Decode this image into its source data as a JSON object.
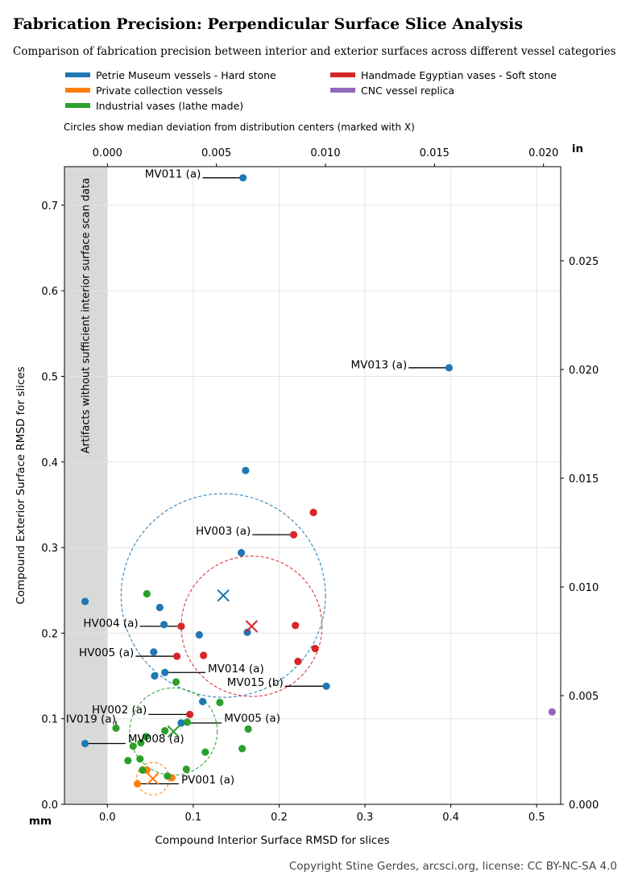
{
  "title": "Fabrication Precision: Perpendicular Surface Slice Analysis",
  "subtitle": "Comparison of fabrication precision between interior and exterior surfaces across different vessel categories",
  "note": "Circles show median deviation from distribution centers (marked with X)",
  "copyright": "Copyright Stine Gerdes, arcsci.org, license: CC BY-NC-SA 4.0",
  "chart_data": {
    "type": "scatter",
    "xlabel": "Compound Interior Surface RMSD for slices",
    "ylabel": "Compound Exterior Surface RMSD for slices",
    "x_unit": "mm",
    "top_unit": "in",
    "xlim": [
      -0.05,
      0.528
    ],
    "ylim": [
      0,
      0.745
    ],
    "xticks": [
      0.0,
      0.1,
      0.2,
      0.3,
      0.4,
      0.5
    ],
    "yticks": [
      0.0,
      0.1,
      0.2,
      0.3,
      0.4,
      0.5,
      0.6,
      0.7
    ],
    "top_ticks_in": [
      "0.000",
      "0.005",
      "0.010",
      "0.015",
      "0.020"
    ],
    "right_ticks_in": [
      "0.000",
      "0.005",
      "0.010",
      "0.015",
      "0.020",
      "0.025"
    ],
    "grid": true,
    "legend_position": "top",
    "shaded_region": {
      "x": [
        -0.05,
        0
      ],
      "label": "Artifacts without sufficient interior surface scan data",
      "color": "#d9d9d9"
    },
    "series": [
      {
        "name": "Petrie Museum vessels - Hard stone",
        "color": "#1f77b4",
        "points": [
          [
            0.158,
            0.732
          ],
          [
            0.398,
            0.51
          ],
          [
            0.161,
            0.39
          ],
          [
            0.156,
            0.294
          ],
          [
            -0.026,
            0.237
          ],
          [
            0.061,
            0.23
          ],
          [
            0.066,
            0.21
          ],
          [
            0.107,
            0.198
          ],
          [
            0.163,
            0.201
          ],
          [
            0.054,
            0.178
          ],
          [
            0.067,
            0.154
          ],
          [
            0.055,
            0.15
          ],
          [
            0.255,
            0.138
          ],
          [
            0.111,
            0.12
          ],
          [
            0.086,
            0.095
          ],
          [
            -0.026,
            0.071
          ]
        ],
        "center": [
          0.135,
          0.244
        ],
        "radius": 0.119
      },
      {
        "name": "Private collection vessels",
        "color": "#ff7f0e",
        "points": [
          [
            0.046,
            0.04
          ],
          [
            0.075,
            0.031
          ],
          [
            0.035,
            0.024
          ]
        ],
        "center": [
          0.053,
          0.03
        ],
        "radius": 0.019
      },
      {
        "name": "Industrial vases (lathe made)",
        "color": "#2ca02c",
        "points": [
          [
            0.046,
            0.246
          ],
          [
            0.08,
            0.143
          ],
          [
            0.131,
            0.119
          ],
          [
            0.164,
            0.088
          ],
          [
            0.01,
            0.089
          ],
          [
            0.093,
            0.096
          ],
          [
            0.067,
            0.086
          ],
          [
            0.045,
            0.079
          ],
          [
            0.039,
            0.072
          ],
          [
            0.03,
            0.068
          ],
          [
            0.024,
            0.051
          ],
          [
            0.038,
            0.053
          ],
          [
            0.114,
            0.061
          ],
          [
            0.157,
            0.065
          ],
          [
            0.041,
            0.04
          ],
          [
            0.092,
            0.041
          ],
          [
            0.07,
            0.033
          ]
        ],
        "center": [
          0.077,
          0.085
        ],
        "radius": 0.051
      },
      {
        "name": "Handmade Egyptian vases - Soft stone",
        "color": "#d62728",
        "points": [
          [
            0.24,
            0.341
          ],
          [
            0.217,
            0.315
          ],
          [
            0.086,
            0.208
          ],
          [
            0.219,
            0.209
          ],
          [
            0.112,
            0.174
          ],
          [
            0.081,
            0.173
          ],
          [
            0.222,
            0.167
          ],
          [
            0.242,
            0.182
          ],
          [
            0.096,
            0.105
          ]
        ],
        "center": [
          0.168,
          0.208
        ],
        "radius": 0.082
      },
      {
        "name": "CNC vessel replica",
        "color": "#9467bd",
        "points": [
          [
            0.518,
            0.108
          ]
        ]
      }
    ],
    "annotations": [
      {
        "text": "MV011 (a)",
        "point": [
          0.158,
          0.732
        ],
        "text_at": [
          0.109,
          0.737
        ],
        "anchor": "end"
      },
      {
        "text": "MV013 (a)",
        "point": [
          0.398,
          0.51
        ],
        "text_at": [
          0.349,
          0.514
        ],
        "anchor": "end"
      },
      {
        "text": "HV003 (a)",
        "point": [
          0.217,
          0.315
        ],
        "text_at": [
          0.167,
          0.32
        ],
        "anchor": "end"
      },
      {
        "text": "HV004 (a)",
        "point": [
          0.086,
          0.208
        ],
        "text_at": [
          0.036,
          0.212
        ],
        "anchor": "end"
      },
      {
        "text": "HV005 (a)",
        "point": [
          0.081,
          0.173
        ],
        "text_at": [
          0.031,
          0.178
        ],
        "anchor": "end"
      },
      {
        "text": "MV014 (a)",
        "point": [
          0.067,
          0.154
        ],
        "text_at": [
          0.117,
          0.159
        ],
        "anchor": "start"
      },
      {
        "text": "MV015 (b)",
        "point": [
          0.255,
          0.138
        ],
        "text_at": [
          0.205,
          0.143
        ],
        "anchor": "end"
      },
      {
        "text": "HV002 (a)",
        "point": [
          0.096,
          0.105
        ],
        "text_at": [
          0.046,
          0.111
        ],
        "anchor": "end"
      },
      {
        "text": "MV005 (a)",
        "point": [
          0.086,
          0.095
        ],
        "text_at": [
          0.136,
          0.101
        ],
        "anchor": "start"
      },
      {
        "text": "IV019 (a)",
        "point": [
          0.01,
          0.089
        ],
        "text_at": [
          0.01,
          0.1
        ],
        "anchor": "end"
      },
      {
        "text": "MV008 (a)",
        "point": [
          -0.026,
          0.071
        ],
        "text_at": [
          0.024,
          0.077
        ],
        "anchor": "start"
      },
      {
        "text": "PV001 (a)",
        "point": [
          0.035,
          0.024
        ],
        "text_at": [
          0.086,
          0.029
        ],
        "anchor": "start"
      }
    ]
  }
}
